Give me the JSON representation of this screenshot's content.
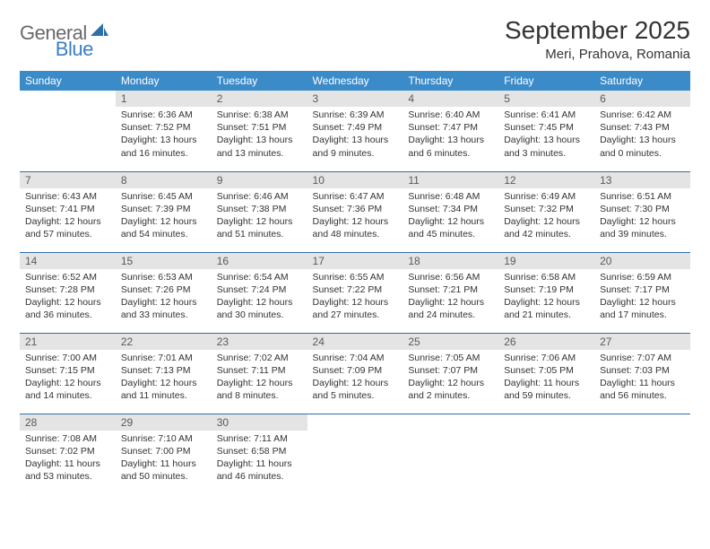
{
  "logo": {
    "part1": "General",
    "part2": "Blue"
  },
  "title": "September 2025",
  "location": "Meri, Prahova, Romania",
  "colors": {
    "header_bg": "#3b8bc9",
    "header_text": "#ffffff",
    "daynum_bg": "#e4e4e4",
    "daynum_text": "#5a5a5a",
    "row_border": "#2f6fa8",
    "title_color": "#333333",
    "logo_gray": "#6a6a6a",
    "logo_blue": "#3b7fc4"
  },
  "font": {
    "family": "Arial",
    "title_size": 28,
    "location_size": 15,
    "header_size": 12,
    "body_size": 10.5
  },
  "days_of_week": [
    "Sunday",
    "Monday",
    "Tuesday",
    "Wednesday",
    "Thursday",
    "Friday",
    "Saturday"
  ],
  "weeks": [
    [
      null,
      {
        "n": "1",
        "sr": "Sunrise: 6:36 AM",
        "ss": "Sunset: 7:52 PM",
        "dl": "Daylight: 13 hours and 16 minutes."
      },
      {
        "n": "2",
        "sr": "Sunrise: 6:38 AM",
        "ss": "Sunset: 7:51 PM",
        "dl": "Daylight: 13 hours and 13 minutes."
      },
      {
        "n": "3",
        "sr": "Sunrise: 6:39 AM",
        "ss": "Sunset: 7:49 PM",
        "dl": "Daylight: 13 hours and 9 minutes."
      },
      {
        "n": "4",
        "sr": "Sunrise: 6:40 AM",
        "ss": "Sunset: 7:47 PM",
        "dl": "Daylight: 13 hours and 6 minutes."
      },
      {
        "n": "5",
        "sr": "Sunrise: 6:41 AM",
        "ss": "Sunset: 7:45 PM",
        "dl": "Daylight: 13 hours and 3 minutes."
      },
      {
        "n": "6",
        "sr": "Sunrise: 6:42 AM",
        "ss": "Sunset: 7:43 PM",
        "dl": "Daylight: 13 hours and 0 minutes."
      }
    ],
    [
      {
        "n": "7",
        "sr": "Sunrise: 6:43 AM",
        "ss": "Sunset: 7:41 PM",
        "dl": "Daylight: 12 hours and 57 minutes."
      },
      {
        "n": "8",
        "sr": "Sunrise: 6:45 AM",
        "ss": "Sunset: 7:39 PM",
        "dl": "Daylight: 12 hours and 54 minutes."
      },
      {
        "n": "9",
        "sr": "Sunrise: 6:46 AM",
        "ss": "Sunset: 7:38 PM",
        "dl": "Daylight: 12 hours and 51 minutes."
      },
      {
        "n": "10",
        "sr": "Sunrise: 6:47 AM",
        "ss": "Sunset: 7:36 PM",
        "dl": "Daylight: 12 hours and 48 minutes."
      },
      {
        "n": "11",
        "sr": "Sunrise: 6:48 AM",
        "ss": "Sunset: 7:34 PM",
        "dl": "Daylight: 12 hours and 45 minutes."
      },
      {
        "n": "12",
        "sr": "Sunrise: 6:49 AM",
        "ss": "Sunset: 7:32 PM",
        "dl": "Daylight: 12 hours and 42 minutes."
      },
      {
        "n": "13",
        "sr": "Sunrise: 6:51 AM",
        "ss": "Sunset: 7:30 PM",
        "dl": "Daylight: 12 hours and 39 minutes."
      }
    ],
    [
      {
        "n": "14",
        "sr": "Sunrise: 6:52 AM",
        "ss": "Sunset: 7:28 PM",
        "dl": "Daylight: 12 hours and 36 minutes."
      },
      {
        "n": "15",
        "sr": "Sunrise: 6:53 AM",
        "ss": "Sunset: 7:26 PM",
        "dl": "Daylight: 12 hours and 33 minutes."
      },
      {
        "n": "16",
        "sr": "Sunrise: 6:54 AM",
        "ss": "Sunset: 7:24 PM",
        "dl": "Daylight: 12 hours and 30 minutes."
      },
      {
        "n": "17",
        "sr": "Sunrise: 6:55 AM",
        "ss": "Sunset: 7:22 PM",
        "dl": "Daylight: 12 hours and 27 minutes."
      },
      {
        "n": "18",
        "sr": "Sunrise: 6:56 AM",
        "ss": "Sunset: 7:21 PM",
        "dl": "Daylight: 12 hours and 24 minutes."
      },
      {
        "n": "19",
        "sr": "Sunrise: 6:58 AM",
        "ss": "Sunset: 7:19 PM",
        "dl": "Daylight: 12 hours and 21 minutes."
      },
      {
        "n": "20",
        "sr": "Sunrise: 6:59 AM",
        "ss": "Sunset: 7:17 PM",
        "dl": "Daylight: 12 hours and 17 minutes."
      }
    ],
    [
      {
        "n": "21",
        "sr": "Sunrise: 7:00 AM",
        "ss": "Sunset: 7:15 PM",
        "dl": "Daylight: 12 hours and 14 minutes."
      },
      {
        "n": "22",
        "sr": "Sunrise: 7:01 AM",
        "ss": "Sunset: 7:13 PM",
        "dl": "Daylight: 12 hours and 11 minutes."
      },
      {
        "n": "23",
        "sr": "Sunrise: 7:02 AM",
        "ss": "Sunset: 7:11 PM",
        "dl": "Daylight: 12 hours and 8 minutes."
      },
      {
        "n": "24",
        "sr": "Sunrise: 7:04 AM",
        "ss": "Sunset: 7:09 PM",
        "dl": "Daylight: 12 hours and 5 minutes."
      },
      {
        "n": "25",
        "sr": "Sunrise: 7:05 AM",
        "ss": "Sunset: 7:07 PM",
        "dl": "Daylight: 12 hours and 2 minutes."
      },
      {
        "n": "26",
        "sr": "Sunrise: 7:06 AM",
        "ss": "Sunset: 7:05 PM",
        "dl": "Daylight: 11 hours and 59 minutes."
      },
      {
        "n": "27",
        "sr": "Sunrise: 7:07 AM",
        "ss": "Sunset: 7:03 PM",
        "dl": "Daylight: 11 hours and 56 minutes."
      }
    ],
    [
      {
        "n": "28",
        "sr": "Sunrise: 7:08 AM",
        "ss": "Sunset: 7:02 PM",
        "dl": "Daylight: 11 hours and 53 minutes."
      },
      {
        "n": "29",
        "sr": "Sunrise: 7:10 AM",
        "ss": "Sunset: 7:00 PM",
        "dl": "Daylight: 11 hours and 50 minutes."
      },
      {
        "n": "30",
        "sr": "Sunrise: 7:11 AM",
        "ss": "Sunset: 6:58 PM",
        "dl": "Daylight: 11 hours and 46 minutes."
      },
      null,
      null,
      null,
      null
    ]
  ]
}
